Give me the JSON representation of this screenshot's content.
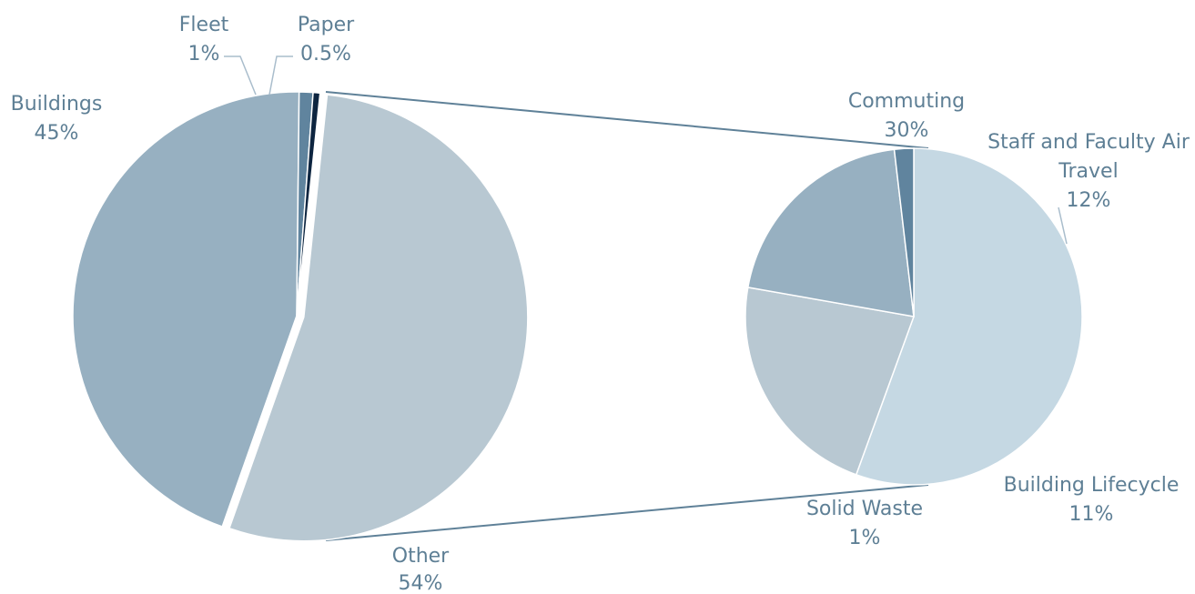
{
  "chart_data": {
    "type": "pie",
    "title": "",
    "main_pie": {
      "slices": [
        {
          "name": "Other",
          "label": "Other",
          "value": 54,
          "value_label": "54%",
          "color": "#b8c8d2"
        },
        {
          "name": "Buildings",
          "label": "Buildings",
          "value": 45,
          "value_label": "45%",
          "color": "#97b0c1"
        },
        {
          "name": "Fleet",
          "label": "Fleet",
          "value": 1,
          "value_label": "1%",
          "color": "#60849e"
        },
        {
          "name": "Paper",
          "label": "Paper",
          "value": 0.5,
          "value_label": "0.5%",
          "color": "#0d2540"
        }
      ]
    },
    "breakdown_pie": {
      "of": "Other",
      "slices": [
        {
          "name": "Commuting",
          "label": "Commuting",
          "value": 30,
          "value_label": "30%",
          "color": "#c5d8e3"
        },
        {
          "name": "Staff and Faculty Air Travel",
          "label_lines": [
            "Staff and Faculty Air",
            "Travel"
          ],
          "value": 12,
          "value_label": "12%",
          "color": "#b8c8d2"
        },
        {
          "name": "Building Lifecycle",
          "label": "Building Lifecycle",
          "value": 11,
          "value_label": "11%",
          "color": "#97b0c1"
        },
        {
          "name": "Solid Waste",
          "label": "Solid Waste",
          "value": 1,
          "value_label": "1%",
          "color": "#60849e"
        }
      ]
    }
  }
}
